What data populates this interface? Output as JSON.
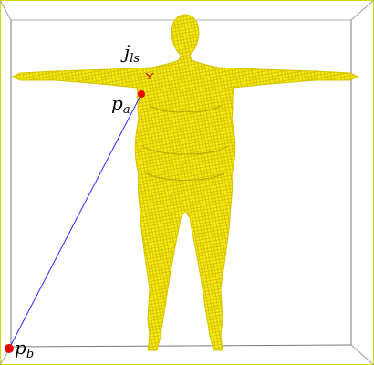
{
  "labels": {
    "joint": "j",
    "joint_sub": "ls",
    "point_a": "p",
    "point_a_sub": "a",
    "point_b": "p",
    "point_b_sub": "b"
  },
  "colors": {
    "mesh": "#f2e600",
    "mesh_line": "#c9b800",
    "box": "#c8c800",
    "box_inner": "#8a8a8a",
    "segment": "#2a2aff",
    "point": "#e60000",
    "joint_marker": "#d40000"
  }
}
